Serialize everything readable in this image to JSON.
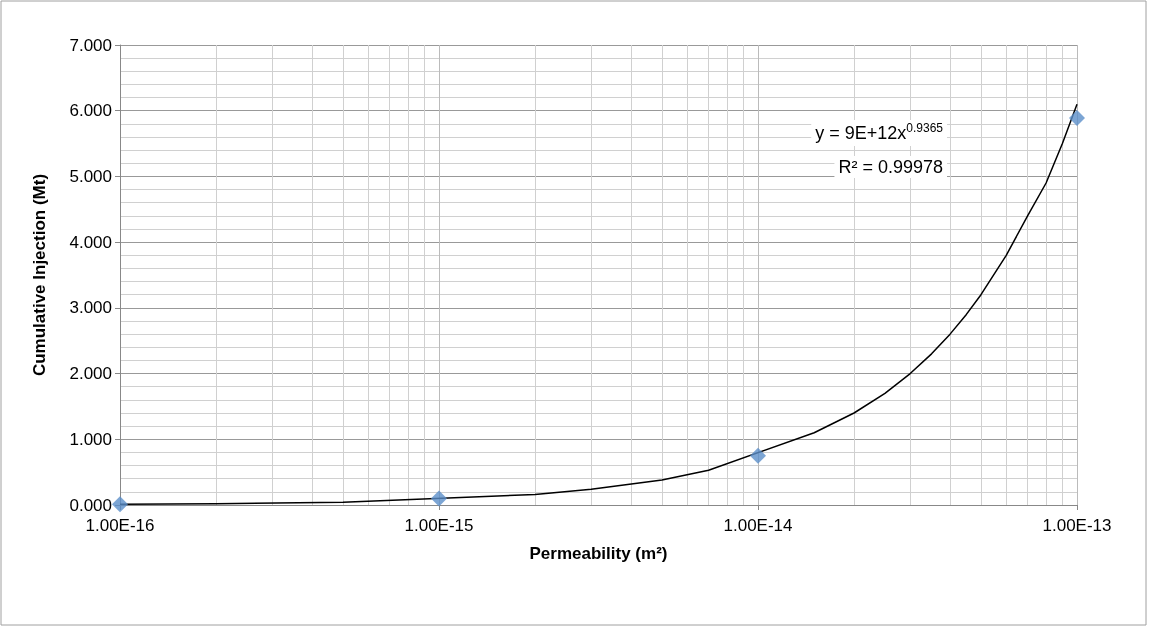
{
  "chart_data": {
    "type": "scatter",
    "xlabel": "Permeability (m²)",
    "ylabel": "Cumulative Injection (Mt)",
    "log": "x",
    "grid": true,
    "marker": "diamond",
    "xlim": [
      1e-16,
      1e-13
    ],
    "xticks": [
      {
        "value": 1e-16,
        "label": "1.00E-16"
      },
      {
        "value": 1e-15,
        "label": "1.00E-15"
      },
      {
        "value": 1e-14,
        "label": "1.00E-14"
      },
      {
        "value": 1e-13,
        "label": "1.00E-13"
      }
    ],
    "ylim": [
      0,
      7
    ],
    "yticks": [
      {
        "value": 0,
        "label": "0.000"
      },
      {
        "value": 1,
        "label": "1.000"
      },
      {
        "value": 2,
        "label": "2.000"
      },
      {
        "value": 3,
        "label": "3.000"
      },
      {
        "value": 4,
        "label": "4.000"
      },
      {
        "value": 5,
        "label": "5.000"
      },
      {
        "value": 6,
        "label": "6.000"
      },
      {
        "value": 7,
        "label": "7.000"
      }
    ],
    "series": [
      {
        "color": "#5b8fc9",
        "x": [
          1e-16,
          1e-15,
          1e-14,
          1e-13
        ],
        "values": [
          0.01,
          0.1,
          0.75,
          5.89
        ]
      },
      {
        "type": "line",
        "color": "#000000",
        "marker": "none",
        "line_style": "solid",
        "x": [
          1e-16,
          2e-16,
          5e-16,
          2e-15,
          3e-15,
          5e-15,
          7e-15,
          1.5e-14,
          2e-14,
          2.5e-14,
          3e-14,
          3.5e-14,
          4e-14,
          4.5e-14,
          5e-14,
          6e-14,
          7e-14,
          8e-14,
          9e-14,
          1e-13
        ],
        "values": [
          0.01,
          0.02,
          0.04,
          0.16,
          0.24,
          0.38,
          0.53,
          1.1,
          1.4,
          1.7,
          2.0,
          2.3,
          2.6,
          2.9,
          3.2,
          3.8,
          4.4,
          4.9,
          5.5,
          6.1
        ]
      }
    ],
    "annotations": [
      "y = 9E+12x$^{0.9365}$",
      "R² = 0.99978"
    ]
  }
}
